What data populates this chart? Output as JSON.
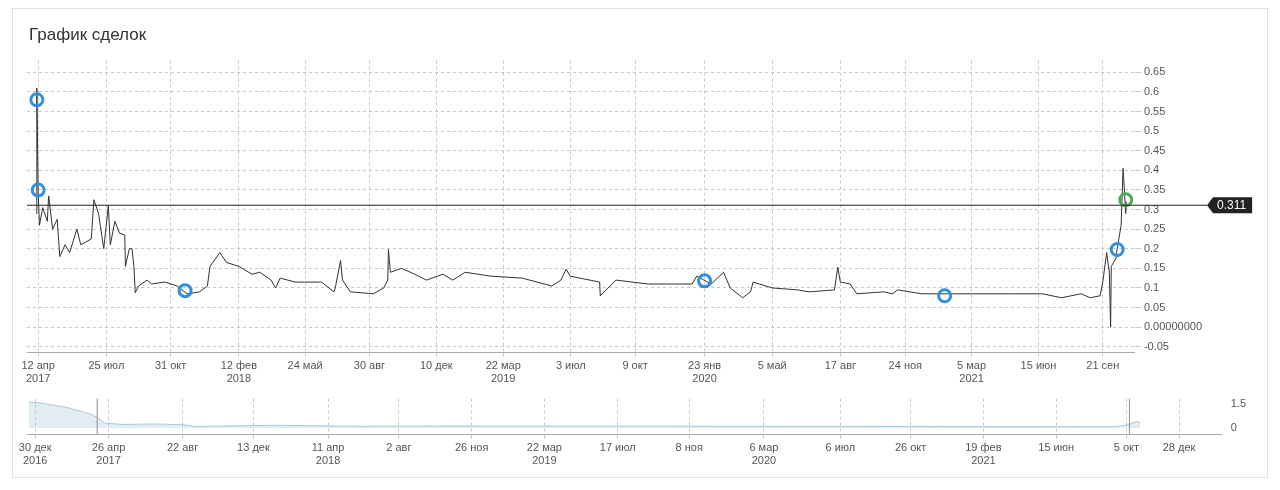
{
  "chart_data": [
    {
      "type": "line",
      "title": "График сделок",
      "series": [
        {
          "color": "#333333",
          "x": [
            "2017-04-09",
            "2017-04-10",
            "2017-04-12",
            "2017-04-14",
            "2017-04-19",
            "2017-04-26",
            "2017-04-28",
            "2017-05-04",
            "2017-05-11",
            "2017-05-15",
            "2017-05-23",
            "2017-05-30",
            "2017-06-10",
            "2017-06-16",
            "2017-07-02",
            "2017-07-06",
            "2017-07-13",
            "2017-07-21",
            "2017-07-28",
            "2017-07-31",
            "2017-08-07",
            "2017-08-14",
            "2017-08-22",
            "2017-08-23",
            "2017-08-29",
            "2017-09-02",
            "2017-09-05",
            "2017-09-07",
            "2017-09-12",
            "2017-09-25",
            "2017-10-02",
            "2017-10-22",
            "2017-11-10",
            "2017-11-25",
            "2017-12-14",
            "2017-12-26",
            "2017-12-30",
            "2018-01-14",
            "2018-01-24",
            "2018-02-12",
            "2018-03-04",
            "2018-03-16",
            "2018-04-02",
            "2018-04-09",
            "2018-04-16",
            "2018-05-09",
            "2018-06-18",
            "2018-07-07",
            "2018-07-09",
            "2018-07-17",
            "2018-07-20",
            "2018-08-01",
            "2018-09-05",
            "2018-09-21",
            "2018-09-27",
            "2018-09-28",
            "2018-10-01",
            "2018-10-18",
            "2018-11-07",
            "2018-11-25",
            "2018-12-20",
            "2019-01-04",
            "2019-01-23",
            "2019-03-03",
            "2019-04-20",
            "2019-06-04",
            "2019-06-18",
            "2019-06-26",
            "2019-07-02",
            "2019-08-16",
            "2019-08-17",
            "2019-09-10",
            "2019-10-29",
            "2020-01-04",
            "2020-01-11",
            "2020-02-02",
            "2020-02-21",
            "2020-03-02",
            "2020-03-21",
            "2020-04-02",
            "2020-04-06",
            "2020-05-05",
            "2020-06-13",
            "2020-06-30",
            "2020-08-08",
            "2020-08-13",
            "2020-08-17",
            "2020-09-01",
            "2020-09-11",
            "2020-10-22",
            "2020-11-05",
            "2020-11-12",
            "2020-12-19",
            "2021-01-26",
            "2021-03-05",
            "2021-05-02",
            "2021-06-21",
            "2021-07-20",
            "2021-08-19",
            "2021-09-02",
            "2021-09-17",
            "2021-09-21",
            "2021-09-27",
            "2021-10-01",
            "2021-10-03",
            "2021-10-04",
            "2021-10-11",
            "2021-10-13",
            "2021-10-19",
            "2021-10-22",
            "2021-10-24",
            "2021-10-26",
            "2021-10-27"
          ],
          "values": [
            0.29,
            0.61,
            0.345,
            0.26,
            0.305,
            0.27,
            0.335,
            0.25,
            0.275,
            0.18,
            0.21,
            0.19,
            0.25,
            0.21,
            0.225,
            0.325,
            0.29,
            0.2,
            0.31,
            0.21,
            0.27,
            0.24,
            0.235,
            0.155,
            0.2,
            0.2,
            0.155,
            0.088,
            0.105,
            0.12,
            0.11,
            0.115,
            0.105,
            0.085,
            0.09,
            0.105,
            0.155,
            0.19,
            0.165,
            0.155,
            0.135,
            0.14,
            0.12,
            0.1,
            0.125,
            0.115,
            0.115,
            0.09,
            0.1,
            0.17,
            0.12,
            0.09,
            0.085,
            0.1,
            0.12,
            0.198,
            0.14,
            0.15,
            0.135,
            0.12,
            0.135,
            0.12,
            0.14,
            0.13,
            0.125,
            0.105,
            0.12,
            0.148,
            0.13,
            0.115,
            0.08,
            0.12,
            0.11,
            0.11,
            0.13,
            0.11,
            0.14,
            0.1,
            0.075,
            0.09,
            0.115,
            0.1,
            0.095,
            0.09,
            0.095,
            0.153,
            0.115,
            0.11,
            0.085,
            0.09,
            0.085,
            0.095,
            0.085,
            0.085,
            0.085,
            0.085,
            0.085,
            0.075,
            0.085,
            0.075,
            0.08,
            0.115,
            0.19,
            0.14,
            0.0,
            0.155,
            0.175,
            0.2,
            0.26,
            0.405,
            0.35,
            0.29,
            0.32
          ]
        },
        {
          "type": "scatter",
          "marker": "circle",
          "color": "#2f8fe0",
          "x": [
            "2017-04-10",
            "2017-04-12",
            "2017-11-22",
            "2020-01-23",
            "2021-01-23",
            "2021-10-13"
          ],
          "values": [
            0.58,
            0.35,
            0.093,
            0.118,
            0.08,
            0.198
          ]
        },
        {
          "type": "scatter",
          "marker": "circle",
          "color": "#52a852",
          "x": [
            "2021-10-26"
          ],
          "values": [
            0.325
          ]
        }
      ],
      "xlim": [
        "2017-03-26",
        "2021-11-09"
      ],
      "xticks": [
        {
          "value": "2017-04-12",
          "label": "12 апр\n2017"
        },
        {
          "value": "2017-07-25",
          "label": "25 июл"
        },
        {
          "value": "2017-10-31",
          "label": "31 окт"
        },
        {
          "value": "2018-02-12",
          "label": "12 фев\n2018"
        },
        {
          "value": "2018-05-24",
          "label": "24 май"
        },
        {
          "value": "2018-08-30",
          "label": "30 авг"
        },
        {
          "value": "2018-12-10",
          "label": "10 дек"
        },
        {
          "value": "2019-03-22",
          "label": "22 мар\n2019"
        },
        {
          "value": "2019-07-03",
          "label": "3 июл"
        },
        {
          "value": "2019-10-09",
          "label": "9 окт"
        },
        {
          "value": "2020-01-23",
          "label": "23 янв\n2020"
        },
        {
          "value": "2020-05-05",
          "label": "5 май"
        },
        {
          "value": "2020-08-17",
          "label": "17 авг"
        },
        {
          "value": "2020-11-24",
          "label": "24 ноя"
        },
        {
          "value": "2021-03-05",
          "label": "5 мар\n2021"
        },
        {
          "value": "2021-06-15",
          "label": "15 июн"
        },
        {
          "value": "2021-09-21",
          "label": "21 сен"
        }
      ],
      "ylim": [
        -0.065,
        0.68
      ],
      "yticks": [
        -0.05,
        {
          "value": 0,
          "label": "0.00000000"
        },
        0.05,
        0.1,
        0.15,
        0.2,
        0.25,
        0.3,
        0.35,
        0.4,
        0.45,
        0.5,
        0.55,
        0.6,
        0.65
      ],
      "grid": true,
      "ref_lines": [
        {
          "axis": "y",
          "value": 0.311,
          "label": "0.311",
          "color": "#222222"
        }
      ]
    },
    {
      "type": "area",
      "series": [
        {
          "color": "#a9c8dc",
          "x": [
            "2016-12-20",
            "2017-01-05",
            "2017-01-20",
            "2017-02-05",
            "2017-02-20",
            "2017-03-05",
            "2017-03-20",
            "2017-04-01",
            "2017-04-10",
            "2017-04-20",
            "2017-05-20",
            "2017-07-10",
            "2017-08-25",
            "2017-09-10",
            "2018-01-15",
            "2018-06-01",
            "2018-10-01",
            "2019-06-01",
            "2020-01-23",
            "2020-06-01",
            "2021-01-01",
            "2021-09-15",
            "2021-10-05",
            "2021-10-22",
            "2021-10-27"
          ],
          "values": [
            1.6,
            1.55,
            1.45,
            1.35,
            1.25,
            1.1,
            0.95,
            0.8,
            0.6,
            0.3,
            0.22,
            0.25,
            0.2,
            0.1,
            0.17,
            0.11,
            0.13,
            0.12,
            0.11,
            0.1,
            0.09,
            0.08,
            0.18,
            0.4,
            0.32
          ]
        }
      ],
      "xlim": [
        "2016-12-17",
        "2022-03-06"
      ],
      "xticks": [
        {
          "value": "2016-12-30",
          "label": "30 дек\n2016"
        },
        {
          "value": "2017-04-26",
          "label": "26 апр\n2017"
        },
        {
          "value": "2017-08-22",
          "label": "22 авг"
        },
        {
          "value": "2017-12-13",
          "label": "13 дек"
        },
        {
          "value": "2018-04-11",
          "label": "11 апр\n2018"
        },
        {
          "value": "2018-08-02",
          "label": "2 авг"
        },
        {
          "value": "2018-11-26",
          "label": "26 ноя"
        },
        {
          "value": "2019-03-22",
          "label": "22 мар\n2019"
        },
        {
          "value": "2019-07-17",
          "label": "17 июл"
        },
        {
          "value": "2019-11-08",
          "label": "8 ноя"
        },
        {
          "value": "2020-03-06",
          "label": "6 мар\n2020"
        },
        {
          "value": "2020-07-06",
          "label": "6 июл"
        },
        {
          "value": "2020-10-26",
          "label": "26 окт"
        },
        {
          "value": "2021-02-19",
          "label": "19 фев\n2021"
        },
        {
          "value": "2021-06-15",
          "label": "15 июн"
        },
        {
          "value": "2021-10-05",
          "label": "5 окт"
        },
        {
          "value": "2021-12-28",
          "label": "28 дек"
        }
      ],
      "ylim": [
        -0.4,
        1.8
      ],
      "yticks": [
        0,
        1.5
      ],
      "grid": "x",
      "ref_lines": [
        {
          "axis": "x",
          "value": "2017-04-08",
          "color": "#9e9e9e"
        },
        {
          "axis": "x",
          "value": "2021-10-10",
          "color": "#9e9e9e"
        }
      ]
    }
  ]
}
